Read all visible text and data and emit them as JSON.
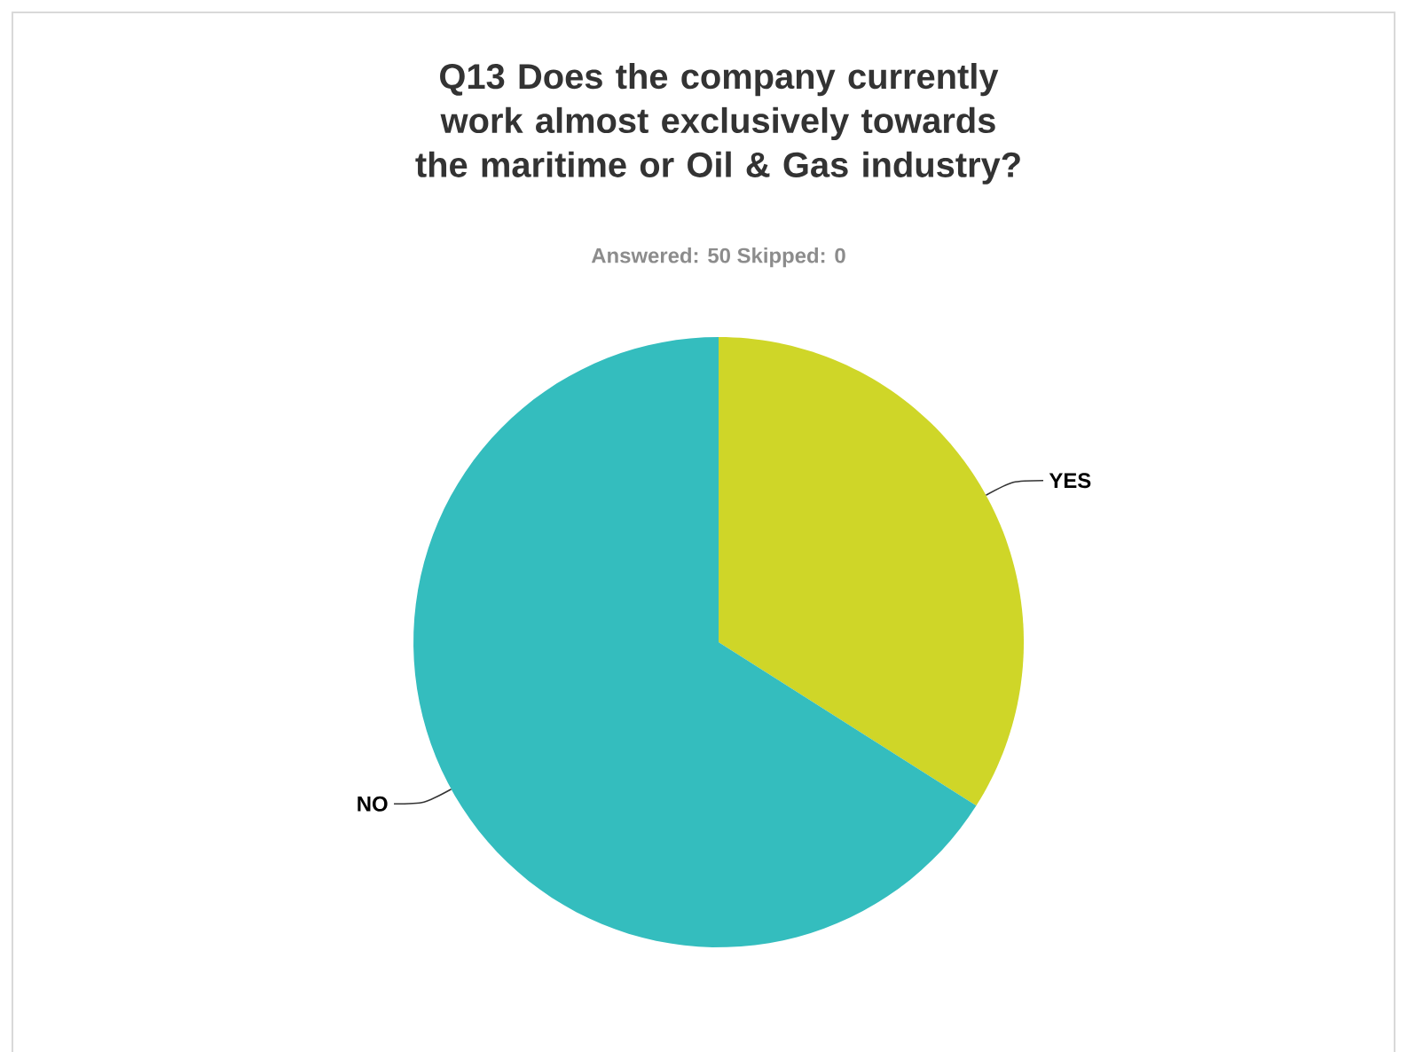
{
  "chart_data": {
    "type": "pie",
    "title": "Q13 Does the company currently work almost exclusively towards the maritime or Oil & Gas industry?",
    "subtitle": "Answered: 50 Skipped: 0",
    "categories": [
      "YES",
      "NO"
    ],
    "values": [
      34,
      66
    ],
    "colors": [
      "#cfd628",
      "#34bdbe"
    ]
  }
}
